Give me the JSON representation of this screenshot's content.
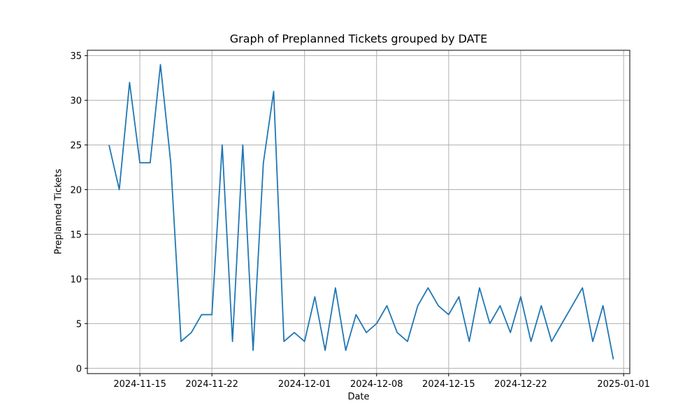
{
  "chart_data": {
    "type": "line",
    "title": "Graph of Preplanned Tickets grouped by DATE",
    "xlabel": "Date",
    "ylabel": "Preplanned Tickets",
    "x_start": "2024-11-12",
    "xlim_days": [
      -2.1,
      50.6
    ],
    "ylim": [
      -0.6,
      35.6
    ],
    "grid": true,
    "x_ticks": [
      {
        "day": 3,
        "label": "2024-11-15"
      },
      {
        "day": 10,
        "label": "2024-11-22"
      },
      {
        "day": 19,
        "label": "2024-12-01"
      },
      {
        "day": 26,
        "label": "2024-12-08"
      },
      {
        "day": 33,
        "label": "2024-12-15"
      },
      {
        "day": 40,
        "label": "2024-12-22"
      },
      {
        "day": 50,
        "label": "2025-01-01"
      }
    ],
    "y_ticks": [
      0,
      5,
      10,
      15,
      20,
      25,
      30,
      35
    ],
    "series": [
      {
        "name": "Preplanned Tickets",
        "color": "#1f77b4",
        "values": [
          25,
          20,
          32,
          23,
          23,
          34,
          23,
          3,
          4,
          6,
          6,
          25,
          3,
          25,
          2,
          23,
          31,
          3,
          4,
          3,
          8,
          2,
          9,
          2,
          6,
          4,
          5,
          7,
          4,
          3,
          7,
          9,
          7,
          6,
          8,
          3,
          9,
          5,
          7,
          4,
          8,
          3,
          7,
          3,
          5,
          7,
          9,
          3,
          7,
          1
        ]
      }
    ]
  }
}
